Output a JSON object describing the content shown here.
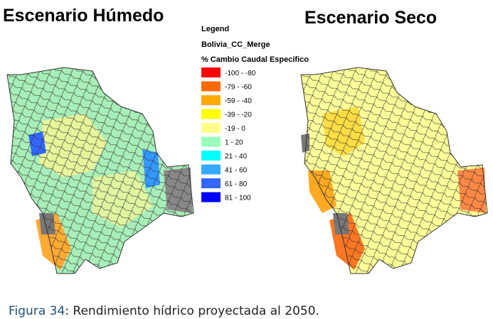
{
  "maps": [
    {
      "title": "Escenario Húmedo"
    },
    {
      "title": "Escenario Seco"
    }
  ],
  "legend": {
    "title": "Legend",
    "layer": "Bolivia_CC_Merge",
    "field": "% Cambio Caudal Especifico",
    "items": [
      {
        "label": "-100 - -80",
        "color": "#ff0000"
      },
      {
        "label": "-79 - -60",
        "color": "#ff6a00"
      },
      {
        "label": "-59 - -40",
        "color": "#ffaa00"
      },
      {
        "label": "-39 - -20",
        "color": "#ffff00"
      },
      {
        "label": "-19 - 0",
        "color": "#ffff88"
      },
      {
        "label": "1 - 20",
        "color": "#99ffbb"
      },
      {
        "label": "21 - 40",
        "color": "#00ffff"
      },
      {
        "label": "41 - 60",
        "color": "#33aaff"
      },
      {
        "label": "61 - 80",
        "color": "#3366ff"
      },
      {
        "label": "81 - 100",
        "color": "#0000ff"
      }
    ]
  },
  "caption": {
    "label": "Figura 34",
    "text": ": Rendimiento hídrico proyectada al 2050."
  }
}
